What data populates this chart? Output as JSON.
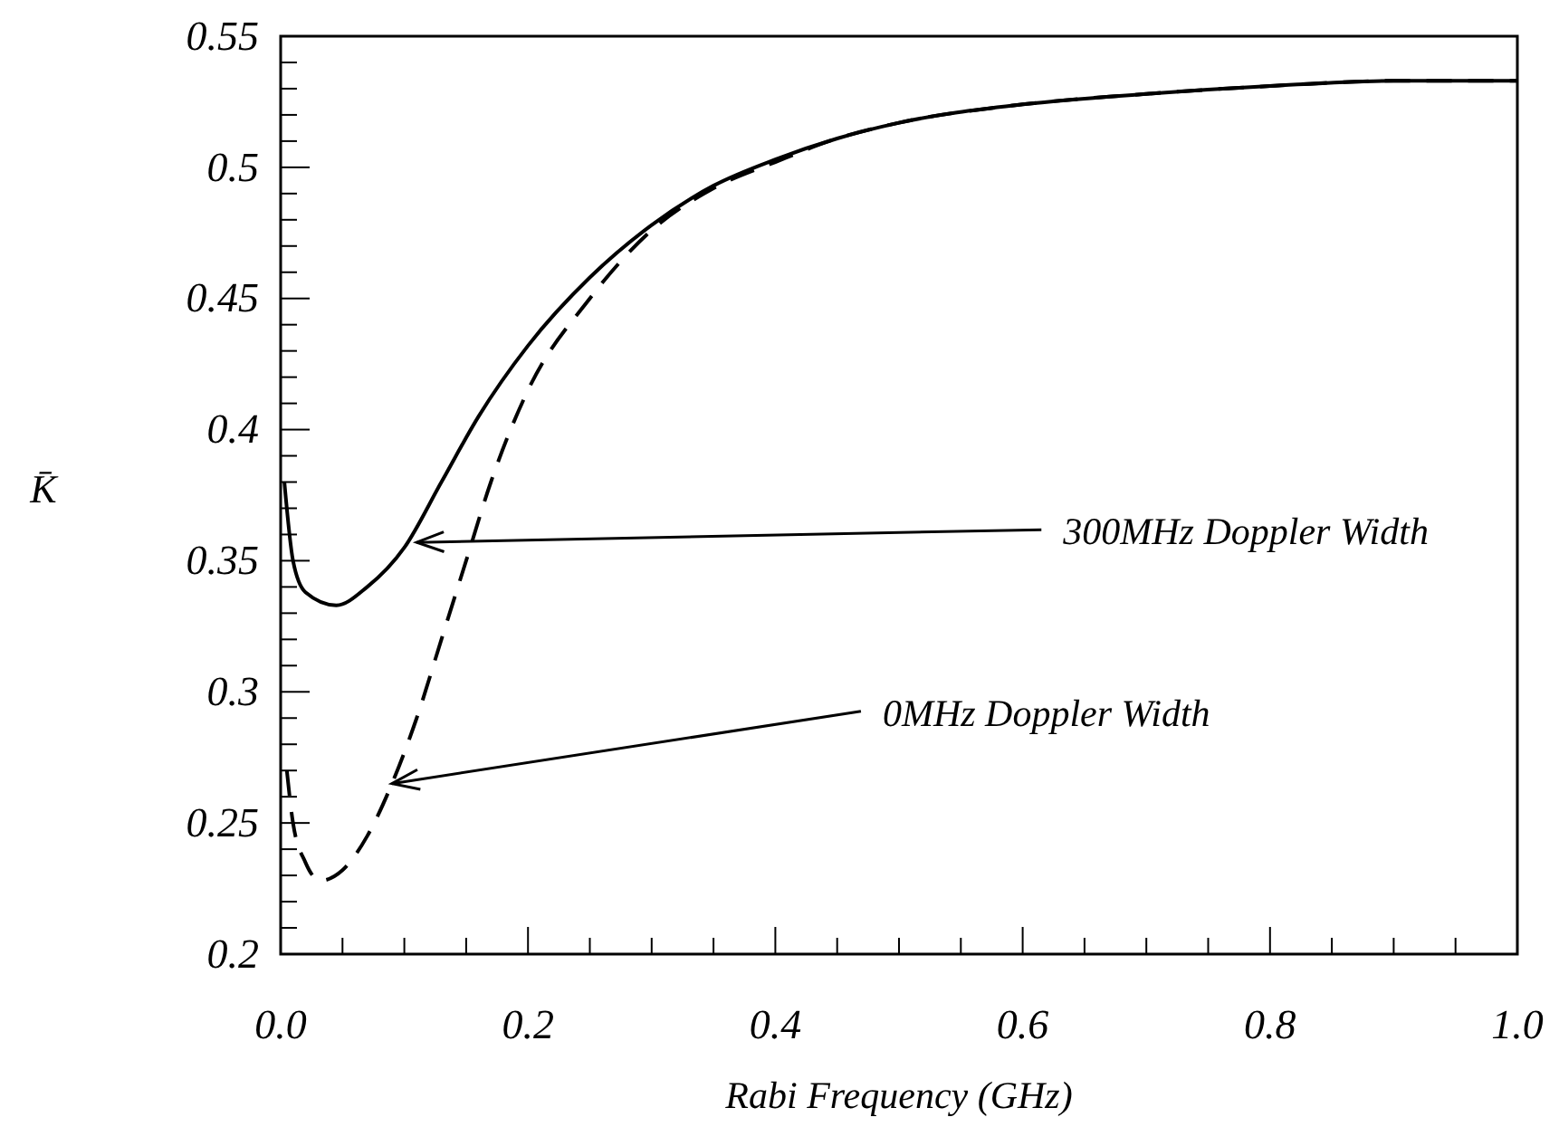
{
  "chart_data": {
    "type": "line",
    "xlabel": "Rabi Frequency (GHz)",
    "ylabel": "K̄",
    "xlim": [
      0,
      1
    ],
    "ylim": [
      0.2,
      0.55
    ],
    "xticks": [
      {
        "value": 0,
        "label": "0.0"
      },
      {
        "value": 0.05,
        "label": null
      },
      {
        "value": 0.1,
        "label": null
      },
      {
        "value": 0.15,
        "label": null
      },
      0.2,
      {
        "value": 0.25,
        "label": null
      },
      {
        "value": 0.3,
        "label": null
      },
      {
        "value": 0.35,
        "label": null
      },
      0.4,
      {
        "value": 0.45,
        "label": null
      },
      {
        "value": 0.5,
        "label": null
      },
      {
        "value": 0.55,
        "label": null
      },
      0.6,
      {
        "value": 0.65,
        "label": null
      },
      {
        "value": 0.7,
        "label": null
      },
      {
        "value": 0.75,
        "label": null
      },
      0.8,
      {
        "value": 0.85,
        "label": null
      },
      {
        "value": 0.9,
        "label": null
      },
      {
        "value": 0.95,
        "label": null
      },
      {
        "value": 1,
        "label": "1.0"
      }
    ],
    "yticks": [
      0.2,
      {
        "value": 0.21,
        "label": null
      },
      {
        "value": 0.22,
        "label": null
      },
      {
        "value": 0.23,
        "label": null
      },
      {
        "value": 0.24,
        "label": null
      },
      0.25,
      {
        "value": 0.26,
        "label": null
      },
      {
        "value": 0.27,
        "label": null
      },
      {
        "value": 0.28,
        "label": null
      },
      {
        "value": 0.29,
        "label": null
      },
      0.3,
      {
        "value": 0.31,
        "label": null
      },
      {
        "value": 0.32,
        "label": null
      },
      {
        "value": 0.33,
        "label": null
      },
      {
        "value": 0.34,
        "label": null
      },
      0.35,
      {
        "value": 0.36,
        "label": null
      },
      {
        "value": 0.37,
        "label": null
      },
      {
        "value": 0.38,
        "label": null
      },
      {
        "value": 0.39,
        "label": null
      },
      0.4,
      {
        "value": 0.41,
        "label": null
      },
      {
        "value": 0.42,
        "label": null
      },
      {
        "value": 0.43,
        "label": null
      },
      {
        "value": 0.44,
        "label": null
      },
      0.45,
      {
        "value": 0.46,
        "label": null
      },
      {
        "value": 0.47,
        "label": null
      },
      {
        "value": 0.48,
        "label": null
      },
      {
        "value": 0.49,
        "label": null
      },
      0.5,
      {
        "value": 0.51,
        "label": null
      },
      {
        "value": 0.52,
        "label": null
      },
      {
        "value": 0.53,
        "label": null
      },
      {
        "value": 0.54,
        "label": null
      },
      0.55
    ],
    "grid": false,
    "series": [
      {
        "color": "#000000",
        "line_style": "solid",
        "x": [
          0.003,
          0.01,
          0.02,
          0.045,
          0.07,
          0.1,
          0.13,
          0.16,
          0.2,
          0.25,
          0.3,
          0.35,
          0.4,
          0.45,
          0.5,
          0.6,
          0.7,
          0.8,
          0.9,
          1.0
        ],
        "values": [
          0.38,
          0.35,
          0.338,
          0.333,
          0.34,
          0.355,
          0.38,
          0.405,
          0.432,
          0.458,
          0.478,
          0.493,
          0.503,
          0.511,
          0.517,
          0.524,
          0.528,
          0.531,
          0.533,
          0.533
        ]
      },
      {
        "color": "#000000",
        "line_style": "dashed",
        "x": [
          0.005,
          0.01,
          0.02,
          0.032,
          0.05,
          0.07,
          0.09,
          0.11,
          0.13,
          0.15,
          0.17,
          0.2,
          0.25,
          0.3,
          0.35,
          0.4,
          0.45,
          0.5,
          0.6,
          0.7,
          0.8,
          0.9,
          1.0
        ],
        "values": [
          0.27,
          0.25,
          0.235,
          0.228,
          0.232,
          0.245,
          0.265,
          0.29,
          0.32,
          0.35,
          0.38,
          0.415,
          0.45,
          0.476,
          0.492,
          0.502,
          0.511,
          0.517,
          0.524,
          0.528,
          0.531,
          0.533,
          0.533
        ]
      }
    ],
    "annotations": [
      {
        "text": "300MHz Doppler Width",
        "x": 0.11,
        "y": 0.357
      },
      {
        "text": "0MHz Doppler Width",
        "x": 0.09,
        "y": 0.265
      }
    ]
  }
}
